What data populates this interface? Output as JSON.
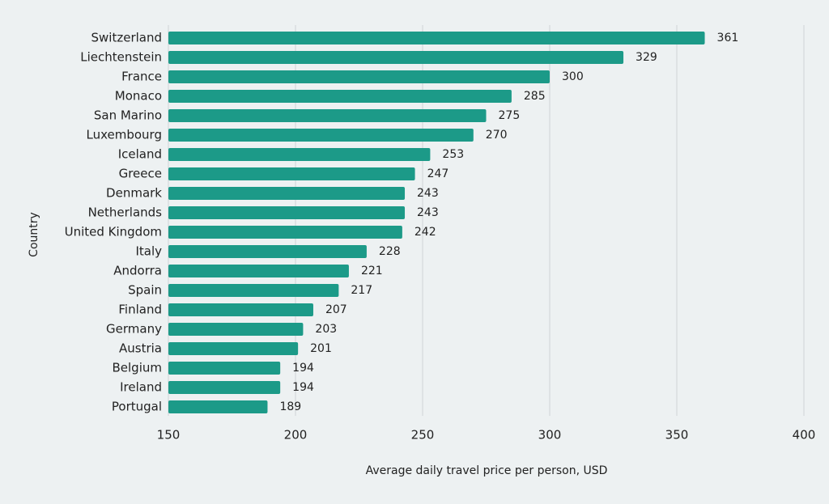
{
  "chart_data": {
    "type": "bar",
    "orientation": "horizontal",
    "x_label": "Average daily travel price per person, USD",
    "y_label": "Country",
    "categories": [
      "Switzerland",
      "Liechtenstein",
      "France",
      "Monaco",
      "San Marino",
      "Luxembourg",
      "Iceland",
      "Greece",
      "Denmark",
      "Netherlands",
      "United Kingdom",
      "Italy",
      "Andorra",
      "Spain",
      "Finland",
      "Germany",
      "Austria",
      "Belgium",
      "Ireland",
      "Portugal"
    ],
    "values": [
      361,
      329,
      300,
      285,
      275,
      270,
      253,
      247,
      243,
      243,
      242,
      228,
      221,
      217,
      207,
      203,
      201,
      194,
      194,
      189
    ],
    "color": "#1c9a88",
    "xlim": [
      150,
      400
    ],
    "xticks": [
      150,
      200,
      250,
      300,
      350,
      400
    ],
    "grid": true
  }
}
